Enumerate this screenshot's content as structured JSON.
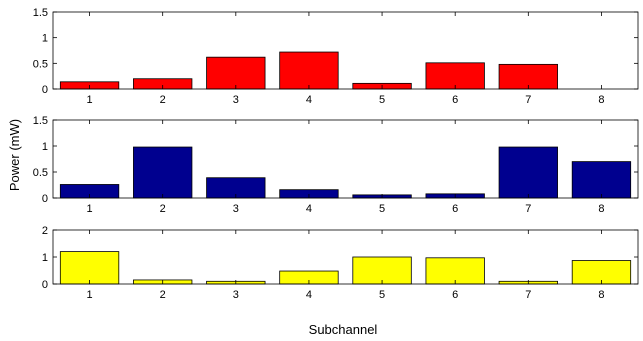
{
  "figure": {
    "xlabel": "Subchannel",
    "ylabel": "Power (mW)"
  },
  "chart_data": [
    {
      "type": "bar",
      "categories": [
        "1",
        "2",
        "3",
        "4",
        "5",
        "6",
        "7",
        "8"
      ],
      "values": [
        0.14,
        0.2,
        0.62,
        0.72,
        0.11,
        0.51,
        0.48,
        0
      ],
      "ylim": [
        0,
        1.5
      ],
      "yticks": [
        0,
        0.5,
        1,
        1.5
      ],
      "ytick_labels": [
        "0",
        "0.5",
        "1",
        "1.5"
      ],
      "color": "#ff0000",
      "grid": false
    },
    {
      "type": "bar",
      "categories": [
        "1",
        "2",
        "3",
        "4",
        "5",
        "6",
        "7",
        "8"
      ],
      "values": [
        0.26,
        0.98,
        0.39,
        0.16,
        0.06,
        0.08,
        0.98,
        0.7
      ],
      "ylim": [
        0,
        1.5
      ],
      "yticks": [
        0,
        0.5,
        1,
        1.5
      ],
      "ytick_labels": [
        "0",
        "0.5",
        "1",
        "1.5"
      ],
      "color": "#00008f",
      "grid": false
    },
    {
      "type": "bar",
      "categories": [
        "1",
        "2",
        "3",
        "4",
        "5",
        "6",
        "7",
        "8"
      ],
      "values": [
        1.2,
        0.15,
        0.1,
        0.48,
        1.0,
        0.97,
        0.1,
        0.87
      ],
      "ylim": [
        0,
        2
      ],
      "yticks": [
        0,
        1,
        2
      ],
      "ytick_labels": [
        "0",
        "1",
        "2"
      ],
      "color": "#ffff00",
      "grid": false
    }
  ]
}
